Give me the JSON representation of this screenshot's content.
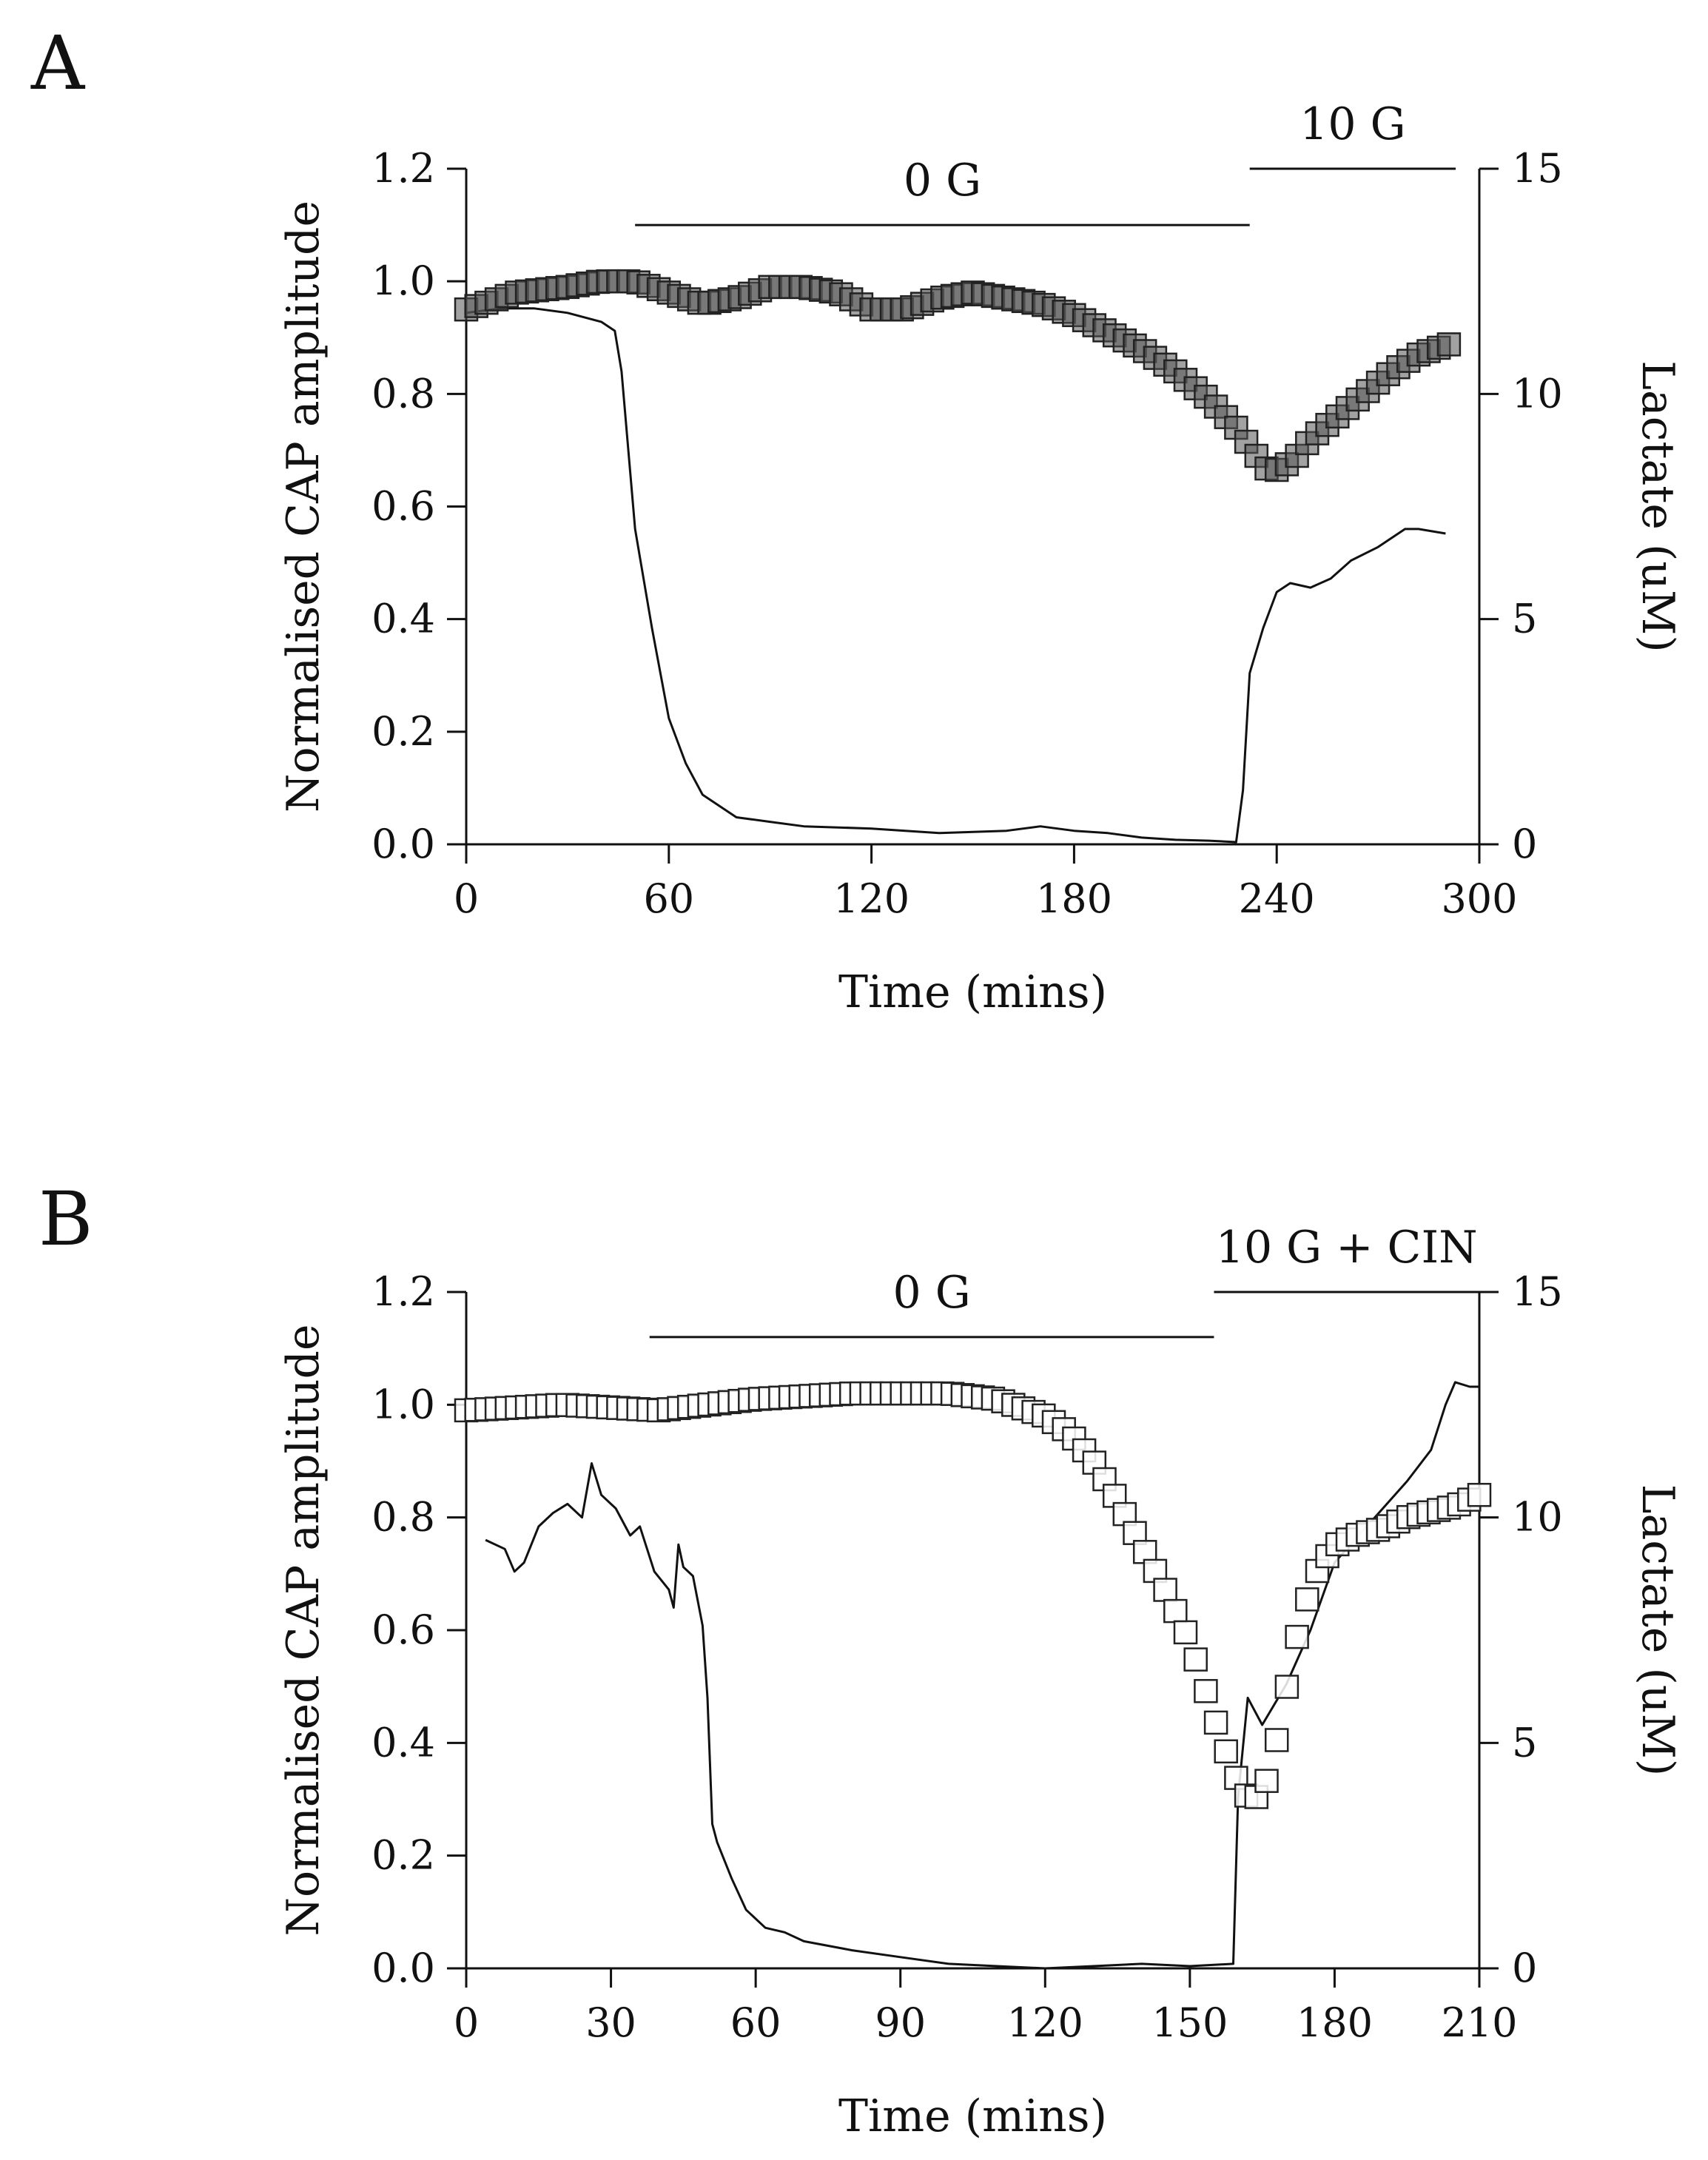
{
  "figure": {
    "panels": [
      "A",
      "B"
    ]
  },
  "chart_data": [
    {
      "panel": "A",
      "type": "scatter+line",
      "xlabel": "Time (mins)",
      "ylabel_left": "Normalised CAP amplitude",
      "ylabel_right": "Lactate (uM)",
      "xlim": [
        0,
        300
      ],
      "ylim_left": [
        0,
        1.2
      ],
      "ylim_right": [
        0,
        15
      ],
      "xticks": [
        "0",
        "60",
        "120",
        "180",
        "240",
        "300"
      ],
      "yticks_left": [
        "0.0",
        "0.2",
        "0.4",
        "0.6",
        "0.8",
        "1.0",
        "1.2"
      ],
      "yticks_right": [
        "0",
        "5",
        "10",
        "15"
      ],
      "bars": [
        {
          "label": "0 G",
          "x0": 50,
          "x1": 232,
          "level": 1.1
        },
        {
          "label": "10 G",
          "x0": 232,
          "x1": 293,
          "level": 1.2
        }
      ],
      "series": [
        {
          "name": "Normalised CAP amplitude",
          "axis": "left",
          "marker": "square",
          "x": [
            0,
            15,
            30,
            40,
            50,
            60,
            70,
            80,
            90,
            100,
            110,
            120,
            130,
            140,
            150,
            160,
            170,
            180,
            190,
            200,
            210,
            220,
            228,
            234,
            238,
            242,
            246,
            250,
            258,
            266,
            274,
            282,
            292
          ],
          "y": [
            0.95,
            0.98,
            0.99,
            1.0,
            1.0,
            0.98,
            0.96,
            0.97,
            0.99,
            0.99,
            0.98,
            0.95,
            0.95,
            0.97,
            0.98,
            0.97,
            0.96,
            0.94,
            0.91,
            0.88,
            0.84,
            0.79,
            0.74,
            0.69,
            0.66,
            0.67,
            0.69,
            0.72,
            0.76,
            0.8,
            0.84,
            0.87,
            0.89
          ]
        },
        {
          "name": "Lactate",
          "axis": "right",
          "marker": "line",
          "x": [
            0,
            10,
            20,
            30,
            40,
            44,
            46,
            50,
            55,
            60,
            65,
            70,
            80,
            90,
            100,
            120,
            140,
            160,
            170,
            180,
            190,
            200,
            210,
            220,
            228,
            230,
            232,
            236,
            240,
            244,
            250,
            256,
            262,
            270,
            278,
            282,
            290
          ],
          "y": [
            11.8,
            11.9,
            11.9,
            11.8,
            11.6,
            11.4,
            10.5,
            7.0,
            4.8,
            2.8,
            1.8,
            1.1,
            0.6,
            0.5,
            0.4,
            0.35,
            0.25,
            0.3,
            0.4,
            0.3,
            0.25,
            0.15,
            0.1,
            0.08,
            0.05,
            1.2,
            3.8,
            4.8,
            5.6,
            5.8,
            5.7,
            5.9,
            6.3,
            6.6,
            7.0,
            7.0,
            6.9
          ]
        }
      ]
    },
    {
      "panel": "B",
      "type": "scatter+line",
      "xlabel": "Time (mins)",
      "ylabel_left": "Normalised CAP amplitude",
      "ylabel_right": "Lactate (uM)",
      "xlim": [
        0,
        210
      ],
      "ylim_left": [
        0,
        1.2
      ],
      "ylim_right": [
        0,
        15
      ],
      "xticks": [
        "0",
        "30",
        "60",
        "90",
        "120",
        "150",
        "180",
        "210"
      ],
      "yticks_left": [
        "0.0",
        "0.2",
        "0.4",
        "0.6",
        "0.8",
        "1.0",
        "1.2"
      ],
      "yticks_right": [
        "0",
        "5",
        "10",
        "15"
      ],
      "bars": [
        {
          "label": "0 G",
          "x0": 38,
          "x1": 155,
          "level": 1.12
        },
        {
          "label": "10 G + CIN",
          "x0": 155,
          "x1": 210,
          "level": 1.2
        }
      ],
      "series": [
        {
          "name": "Normalised CAP amplitude",
          "axis": "left",
          "marker": "square",
          "x": [
            0,
            20,
            40,
            60,
            80,
            100,
            110,
            120,
            125,
            130,
            135,
            140,
            145,
            150,
            153,
            156,
            159,
            161,
            163,
            165,
            167,
            169,
            171,
            173,
            176,
            180,
            185,
            190,
            195,
            200,
            205,
            210
          ],
          "y": [
            0.99,
            1.0,
            0.99,
            1.01,
            1.02,
            1.02,
            1.01,
            0.98,
            0.95,
            0.9,
            0.83,
            0.75,
            0.67,
            0.58,
            0.5,
            0.42,
            0.35,
            0.31,
            0.3,
            0.31,
            0.36,
            0.45,
            0.54,
            0.62,
            0.7,
            0.75,
            0.77,
            0.78,
            0.8,
            0.81,
            0.82,
            0.84
          ]
        },
        {
          "name": "Lactate",
          "axis": "right",
          "marker": "line",
          "x": [
            4,
            8,
            10,
            12,
            15,
            18,
            21,
            24,
            26,
            28,
            31,
            34,
            36,
            39,
            42,
            43,
            44,
            45,
            47,
            49,
            50,
            51,
            52,
            55,
            58,
            62,
            66,
            70,
            80,
            90,
            100,
            110,
            120,
            130,
            140,
            150,
            159,
            160,
            162,
            165,
            170,
            175,
            180,
            185,
            190,
            195,
            200,
            203,
            205,
            208,
            210
          ],
          "y": [
            9.5,
            9.3,
            8.8,
            9.0,
            9.8,
            10.1,
            10.3,
            10.0,
            11.2,
            10.5,
            10.2,
            9.6,
            9.8,
            8.8,
            8.4,
            8.0,
            9.4,
            8.9,
            8.7,
            7.6,
            6.0,
            3.2,
            2.8,
            2.0,
            1.3,
            0.9,
            0.8,
            0.6,
            0.4,
            0.25,
            0.1,
            0.05,
            0.0,
            0.05,
            0.1,
            0.05,
            0.1,
            3.8,
            6.0,
            5.4,
            6.3,
            7.5,
            9.0,
            9.6,
            10.2,
            10.8,
            11.5,
            12.5,
            13.0,
            12.9,
            12.9
          ]
        }
      ]
    }
  ]
}
